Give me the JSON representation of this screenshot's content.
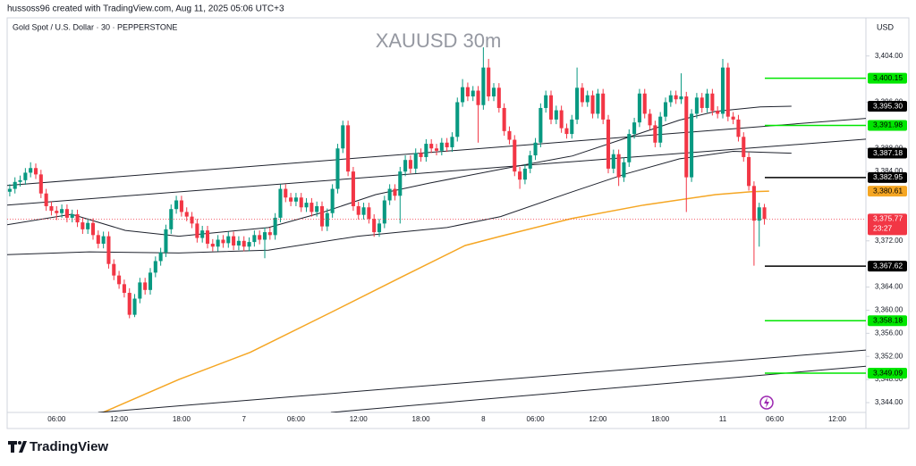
{
  "header": {
    "credit": "hussoss96 created with TradingView.com, Aug 11, 2025 05:06 UTC+3",
    "logo": "TradingView"
  },
  "chart_data": {
    "type": "candlestick",
    "title": "Gold Spot / U.S. Dollar · 30 · PEPPERSTONE",
    "watermark": "XAUUSD 30m",
    "currency": "USD",
    "up_color": "#089981",
    "down_color": "#f23645",
    "categories": [
      null,
      null,
      null,
      null,
      null,
      null,
      null,
      null,
      null,
      "06:00",
      null,
      null,
      null,
      null,
      null,
      null,
      null,
      null,
      null,
      null,
      null,
      "12:00",
      null,
      null,
      null,
      null,
      null,
      null,
      null,
      null,
      null,
      null,
      null,
      "18:00",
      null,
      null,
      null,
      null,
      null,
      null,
      null,
      null,
      null,
      null,
      null,
      "7",
      null,
      null,
      null,
      null,
      null,
      null,
      null,
      null,
      null,
      "06:00",
      null,
      null,
      null,
      null,
      null,
      null,
      null,
      null,
      null,
      null,
      null,
      "12:00",
      null,
      null,
      null,
      null,
      null,
      null,
      null,
      null,
      null,
      null,
      null,
      "18:00",
      null,
      null,
      null,
      null,
      null,
      null,
      null,
      null,
      null,
      null,
      null,
      "8",
      null,
      null,
      null,
      null,
      null,
      null,
      null,
      null,
      null,
      "06:00",
      null,
      null,
      null,
      null,
      null,
      null,
      null,
      null,
      null,
      null,
      null,
      "12:00",
      null,
      null,
      null,
      null,
      null,
      null,
      null,
      null,
      null,
      null,
      null,
      "18:00",
      null,
      null,
      null,
      null,
      null,
      null,
      null,
      null,
      null,
      null,
      null,
      "11",
      null,
      null,
      null,
      null,
      null,
      null,
      null,
      null,
      null,
      "06:00",
      null,
      null,
      null,
      null,
      null,
      null,
      null,
      null,
      null,
      null,
      null,
      "12:00",
      null,
      null,
      null,
      null,
      null
    ],
    "open": [
      3380.5,
      3381.0,
      3382.2,
      3382.5,
      3383.8,
      3384.6,
      3383.5,
      3380.2,
      3378.0,
      3377.2,
      3376.8,
      3377.5,
      3376.0,
      3376.6,
      3375.2,
      3374.0,
      3375.1,
      3373.0,
      3371.5,
      3372.8,
      3368.0,
      3366.0,
      3364.5,
      3363.0,
      3359.2,
      3362.0,
      3364.8,
      3363.5,
      3366.5,
      3368.5,
      3370.0,
      3374.0,
      3377.5,
      3379.0,
      3377.0,
      3376.2,
      3375.0,
      3372.5,
      3373.8,
      3371.5,
      3371.0,
      3372.2,
      3371.6,
      3372.8,
      3371.2,
      3372.0,
      3371.0,
      3371.8,
      3373.0,
      3372.2,
      3373.5,
      3373.0,
      3376.0,
      3381.0,
      3379.5,
      3378.8,
      3379.5,
      3377.8,
      3378.6,
      3377.0,
      3378.0,
      3374.5,
      3376.8,
      3381.0,
      3388.0,
      3392.0,
      3384.0,
      3378.0,
      3376.5,
      3377.8,
      3375.8,
      3373.5,
      3375.0,
      3379.0,
      3381.0,
      3379.8,
      3384.0,
      3386.0,
      3384.5,
      3387.2,
      3386.5,
      3388.8,
      3388.0,
      3387.6,
      3389.0,
      3388.2,
      3390.0,
      3396.0,
      3398.6,
      3397.0,
      3398.0,
      3395.5,
      3402.0,
      3397.0,
      3398.5,
      3395.0,
      3391.0,
      3389.5,
      3384.0,
      3382.6,
      3384.5,
      3386.8,
      3389.0,
      3395.0,
      3397.2,
      3393.0,
      3394.6,
      3391.5,
      3390.5,
      3393.0,
      3398.5,
      3396.0,
      3397.2,
      3394.0,
      3397.5,
      3393.0,
      3384.5,
      3387.0,
      3383.0,
      3385.6,
      3390.5,
      3392.5,
      3397.5,
      3394.0,
      3392.0,
      3389.0,
      3393.5,
      3396.0,
      3397.2,
      3396.5,
      3397.0,
      3383.0,
      3394.0,
      3396.8,
      3395.0,
      3397.5,
      3394.5,
      3394.0,
      3402.0,
      3393.5,
      3393.0,
      3390.0,
      3386.5,
      3381.5,
      3375.5,
      3377.8,
      null,
      null,
      null,
      null,
      null,
      null,
      null,
      null,
      null,
      null,
      null,
      null,
      null,
      null,
      null,
      null,
      null,
      null,
      null
    ],
    "high": [
      3381.8,
      3383.0,
      3383.3,
      3384.6,
      3385.6,
      3385.4,
      3384.3,
      3381.0,
      3378.8,
      3378.0,
      3378.3,
      3378.3,
      3377.4,
      3377.4,
      3376.0,
      3375.9,
      3375.9,
      3373.8,
      3373.6,
      3373.6,
      3368.8,
      3366.8,
      3365.3,
      3363.8,
      3362.8,
      3365.6,
      3365.6,
      3367.3,
      3369.3,
      3370.8,
      3374.8,
      3378.3,
      3379.8,
      3379.8,
      3377.8,
      3377.0,
      3375.8,
      3374.6,
      3374.6,
      3372.3,
      3373.0,
      3373.0,
      3373.6,
      3373.6,
      3372.8,
      3372.8,
      3372.6,
      3373.8,
      3373.8,
      3374.3,
      3374.3,
      3376.8,
      3381.8,
      3381.8,
      3380.3,
      3380.3,
      3380.3,
      3379.4,
      3379.4,
      3378.8,
      3378.8,
      3377.6,
      3381.8,
      3388.8,
      3392.8,
      3392.8,
      3384.8,
      3378.8,
      3378.6,
      3378.6,
      3376.6,
      3375.8,
      3379.8,
      3381.8,
      3381.8,
      3384.8,
      3386.8,
      3386.8,
      3388.0,
      3388.0,
      3389.6,
      3389.6,
      3388.8,
      3389.8,
      3389.8,
      3390.8,
      3396.8,
      3400.0,
      3399.4,
      3398.8,
      3398.8,
      3405.5,
      3403.5,
      3399.3,
      3399.3,
      3395.8,
      3391.8,
      3390.3,
      3384.8,
      3385.3,
      3387.6,
      3389.8,
      3395.8,
      3398.0,
      3398.0,
      3395.4,
      3395.4,
      3392.3,
      3393.8,
      3402.0,
      3399.3,
      3398.0,
      3398.0,
      3398.3,
      3398.3,
      3393.8,
      3387.8,
      3387.8,
      3386.4,
      3391.3,
      3393.3,
      3398.3,
      3398.3,
      3394.8,
      3392.8,
      3394.3,
      3396.8,
      3398.0,
      3398.0,
      3401.0,
      3397.8,
      3394.8,
      3397.6,
      3397.6,
      3398.3,
      3398.3,
      3395.3,
      3403.5,
      3402.8,
      3394.3,
      3393.8,
      3390.8,
      3387.3,
      3382.3,
      3378.6,
      3378.4,
      null,
      null,
      null,
      null,
      null,
      null,
      null,
      null,
      null,
      null,
      null,
      null,
      null,
      null,
      null,
      null,
      null,
      null,
      null
    ],
    "low": [
      3379.7,
      3380.2,
      3381.4,
      3381.7,
      3383.0,
      3382.7,
      3379.4,
      3377.2,
      3376.4,
      3375.6,
      3376.0,
      3375.2,
      3375.2,
      3374.4,
      3373.2,
      3373.2,
      3372.2,
      3370.7,
      3370.7,
      3367.2,
      3365.2,
      3363.7,
      3362.2,
      3358.6,
      3358.8,
      3361.2,
      3362.7,
      3362.7,
      3365.7,
      3367.7,
      3369.2,
      3373.2,
      3376.7,
      3376.2,
      3375.4,
      3374.2,
      3371.7,
      3371.7,
      3370.7,
      3370.2,
      3370.2,
      3370.8,
      3370.8,
      3370.4,
      3370.4,
      3370.2,
      3370.2,
      3371.0,
      3371.4,
      3369.0,
      3372.2,
      3372.2,
      3375.2,
      3378.7,
      3378.0,
      3378.0,
      3377.0,
      3377.0,
      3376.2,
      3376.2,
      3373.7,
      3373.7,
      3376.0,
      3380.2,
      3387.2,
      3383.2,
      3377.2,
      3375.7,
      3375.7,
      3375.0,
      3372.7,
      3372.7,
      3374.2,
      3378.2,
      3379.0,
      3375.0,
      3383.2,
      3383.7,
      3383.7,
      3385.7,
      3385.7,
      3387.2,
      3386.8,
      3386.8,
      3387.4,
      3387.4,
      3389.2,
      3395.2,
      3396.2,
      3396.2,
      3389.0,
      3394.7,
      3396.2,
      3396.2,
      3394.2,
      3390.2,
      3388.7,
      3383.2,
      3381.0,
      3381.8,
      3383.7,
      3386.0,
      3388.2,
      3394.2,
      3392.2,
      3392.2,
      3390.7,
      3389.7,
      3389.7,
      3392.2,
      3395.2,
      3395.2,
      3393.2,
      3393.2,
      3392.2,
      3383.7,
      3383.7,
      3381.5,
      3382.2,
      3384.8,
      3389.7,
      3391.7,
      3393.2,
      3391.2,
      3388.2,
      3388.2,
      3392.7,
      3395.2,
      3395.7,
      3395.7,
      3377.0,
      3382.2,
      3393.2,
      3394.2,
      3394.2,
      3393.7,
      3393.2,
      3393.2,
      3392.7,
      3392.2,
      3389.2,
      3385.7,
      3380.7,
      3367.7,
      3371.0,
      3374.8,
      null,
      null,
      null,
      null,
      null,
      null,
      null,
      null,
      null,
      null,
      null,
      null,
      null,
      null,
      null,
      null,
      null,
      null,
      null
    ],
    "close": [
      3381.0,
      3382.2,
      3382.5,
      3383.8,
      3384.6,
      3383.5,
      3380.2,
      3378.0,
      3377.2,
      3376.8,
      3377.5,
      3376.0,
      3376.6,
      3375.2,
      3374.0,
      3375.1,
      3373.0,
      3371.5,
      3372.8,
      3368.0,
      3366.0,
      3364.5,
      3363.0,
      3359.2,
      3362.0,
      3364.8,
      3363.5,
      3366.5,
      3368.5,
      3370.0,
      3374.0,
      3377.5,
      3379.0,
      3377.0,
      3376.2,
      3375.0,
      3372.5,
      3373.8,
      3371.5,
      3371.0,
      3372.2,
      3371.6,
      3372.8,
      3371.2,
      3372.0,
      3371.0,
      3371.8,
      3373.0,
      3372.2,
      3373.5,
      3373.0,
      3376.0,
      3381.0,
      3379.5,
      3378.8,
      3379.5,
      3377.8,
      3378.6,
      3377.0,
      3378.0,
      3374.5,
      3376.8,
      3381.0,
      3388.0,
      3392.0,
      3384.0,
      3378.0,
      3376.5,
      3377.8,
      3375.8,
      3373.5,
      3375.0,
      3379.0,
      3381.0,
      3379.8,
      3384.0,
      3386.0,
      3384.5,
      3387.2,
      3386.5,
      3388.8,
      3388.0,
      3387.6,
      3389.0,
      3388.2,
      3390.0,
      3396.0,
      3398.6,
      3397.0,
      3398.0,
      3395.5,
      3402.0,
      3397.0,
      3398.5,
      3395.0,
      3391.0,
      3389.5,
      3384.0,
      3382.6,
      3384.5,
      3386.8,
      3389.0,
      3395.0,
      3397.2,
      3393.0,
      3394.6,
      3391.5,
      3390.5,
      3393.0,
      3398.5,
      3396.0,
      3397.2,
      3394.0,
      3397.5,
      3393.0,
      3384.5,
      3387.0,
      3383.0,
      3385.6,
      3390.5,
      3392.5,
      3397.5,
      3394.0,
      3392.0,
      3389.0,
      3393.5,
      3396.0,
      3397.2,
      3396.5,
      3397.0,
      3383.0,
      3394.0,
      3396.8,
      3395.0,
      3397.5,
      3394.5,
      3394.0,
      3402.0,
      3393.5,
      3393.0,
      3390.0,
      3386.5,
      3381.5,
      3375.5,
      3377.8,
      3375.77,
      null,
      null,
      null,
      null,
      null,
      null,
      null,
      null,
      null,
      null,
      null,
      null,
      null,
      null,
      null,
      null,
      null,
      null,
      null
    ],
    "ylim": [
      3342.3,
      3410.6
    ],
    "yticks": [
      {
        "value": 3344,
        "label": "3,344.00"
      },
      {
        "value": 3348,
        "label": "3,348.00"
      },
      {
        "value": 3352,
        "label": "3,352.00"
      },
      {
        "value": 3356,
        "label": "3,356.00"
      },
      {
        "value": 3360,
        "label": "3,360.00"
      },
      {
        "value": 3364,
        "label": "3,364.00"
      },
      {
        "value": 3372,
        "label": "3,372.00"
      },
      {
        "value": 3384,
        "label": "3,384.00"
      },
      {
        "value": 3388,
        "label": "3,388.00"
      },
      {
        "value": 3396,
        "label": "3,396.00"
      },
      {
        "value": 3404,
        "label": "3,404.00"
      }
    ],
    "overlays": [
      {
        "color": "#f5a623",
        "x": [
          17.9,
          32.5,
          46.2,
          61.7,
          75.4,
          87.5,
          94.3,
          108.1,
          121.8,
          135.6,
          142.5,
          145.9
        ],
        "y": [
          3342.3,
          3348.0,
          3352.7,
          3359.6,
          3365.8,
          3371.2,
          3372.8,
          3375.9,
          3378.2,
          3380.0,
          3380.5,
          3380.61
        ]
      },
      {
        "color": "#1e222d",
        "x": [
          -0.5,
          11.9,
          22.2,
          32.5,
          49.7,
          60.0,
          70.3,
          80.6,
          94.3,
          108.1,
          118.4,
          128.7,
          135.6,
          144.2,
          150.2
        ],
        "y": [
          3374.8,
          3376.6,
          3373.8,
          3372.8,
          3374.3,
          3376.9,
          3380.0,
          3382.0,
          3384.4,
          3386.7,
          3389.8,
          3392.9,
          3394.4,
          3395.2,
          3395.3
        ]
      },
      {
        "color": "#1e222d",
        "x": [
          -0.5,
          15.3,
          32.5,
          49.7,
          66.9,
          84.0,
          94.3,
          108.1,
          118.4,
          128.7,
          139.0,
          150.2
        ],
        "y": [
          3369.6,
          3370.1,
          3369.9,
          3370.4,
          3372.8,
          3374.3,
          3376.2,
          3380.5,
          3383.6,
          3386.2,
          3387.5,
          3387.18
        ]
      },
      {
        "color": "#1e222d",
        "x": [
          -0.5,
          164.5
        ],
        "y": [
          3381.6,
          3393.2
        ]
      },
      {
        "color": "#1e222d",
        "x": [
          -0.5,
          164.5
        ],
        "y": [
          3378.2,
          3389.6
        ]
      },
      {
        "color": "#1e222d",
        "x": [
          17.0,
          164.5
        ],
        "y": [
          3342.3,
          3353.1
        ]
      },
      {
        "color": "#1e222d",
        "x": [
          61.7,
          164.5
        ],
        "y": [
          3342.3,
          3350.3
        ]
      }
    ],
    "price_lines": [
      {
        "value": 3400.15,
        "label": "3,400.15",
        "color": "#00e600",
        "text_color": "#000000",
        "line": "solid"
      },
      {
        "value": 3395.3,
        "label": "3,395.30",
        "color": "#000000",
        "text_color": "#ffffff"
      },
      {
        "value": 3391.98,
        "label": "3,391.98",
        "color": "#00e600",
        "text_color": "#000000",
        "line": "solid"
      },
      {
        "value": 3387.18,
        "label": "3,387.18",
        "color": "#000000",
        "text_color": "#ffffff"
      },
      {
        "value": 3382.95,
        "label": "3,382.95",
        "color": "#000000",
        "text_color": "#ffffff",
        "line": "solid"
      },
      {
        "value": 3380.61,
        "label": "3,380.61",
        "color": "#f5a623",
        "text_color": "#000000"
      },
      {
        "value": 3375.77,
        "label": "3,375.77",
        "color": "#f23645",
        "text_color": "#ffffff",
        "line": "dotted",
        "countdown": "23:27"
      },
      {
        "value": 3367.62,
        "label": "3,367.62",
        "color": "#000000",
        "text_color": "#ffffff",
        "line": "solid"
      },
      {
        "value": 3358.18,
        "label": "3,358.18",
        "color": "#00e600",
        "text_color": "#000000",
        "line": "solid"
      },
      {
        "value": 3349.09,
        "label": "3,349.09",
        "color": "#00e600",
        "text_color": "#000000",
        "line": "solid"
      }
    ]
  }
}
